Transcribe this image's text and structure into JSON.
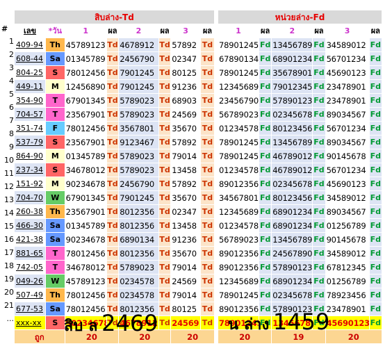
{
  "left_title": "สิบล่าง-Td",
  "right_title": "หน่วยล่าง-Fd",
  "col_hash": "#",
  "col_lek": "เลข",
  "col_day": "*วัน",
  "col_one": "1",
  "col_two": "2",
  "col_three": "3",
  "col_res": "ผล",
  "td_label": "Td",
  "fd_label": "Fd",
  "sum_label": "ถูก",
  "sum_left": [
    "20",
    "20",
    "20"
  ],
  "sum_right": [
    "20",
    "19",
    "20"
  ],
  "bottom_left_text": "สิบ ล",
  "bottom_left_num": "2469",
  "bottom_right_text": "น ล่าง",
  "bottom_right_num": "1459",
  "colors": {
    "T": "#ff66cc",
    "S": "#ff6666",
    "M": "#ffffcc",
    "W": "#66cc66",
    "F": "#66ccff",
    "Th": "#ffb84d",
    "Sa": "#6699ff"
  },
  "rows": [
    {
      "n": "1",
      "lek": "409-94",
      "day": "Th",
      "l": [
        "45789123",
        "4678912",
        "57892"
      ],
      "r": [
        "78901245",
        "13456789",
        "34589012"
      ]
    },
    {
      "n": "2",
      "lek": "608-44",
      "day": "Sa",
      "l": [
        "01345789",
        "2456790",
        "02347"
      ],
      "r": [
        "67890134",
        "68901234",
        "56701234"
      ]
    },
    {
      "n": "3",
      "lek": "804-25",
      "day": "S",
      "l": [
        "78012456",
        "7901245",
        "80125"
      ],
      "r": [
        "78901245",
        "35678901",
        "45690123"
      ]
    },
    {
      "n": "4",
      "lek": "449-11",
      "day": "M",
      "l": [
        "12456890",
        "7901245",
        "91236"
      ],
      "r": [
        "12345689",
        "79012345",
        "23478901"
      ]
    },
    {
      "n": "5",
      "lek": "354-90",
      "day": "T",
      "l": [
        "67901345",
        "5789023",
        "68903"
      ],
      "r": [
        "23456790",
        "57890123",
        "23478901"
      ]
    },
    {
      "n": "6",
      "lek": "704-57",
      "day": "T",
      "l": [
        "23567901",
        "5789023",
        "24569"
      ],
      "r": [
        "56789023",
        "02345678",
        "89034567"
      ]
    },
    {
      "n": "7",
      "lek": "351-74",
      "day": "F",
      "l": [
        "78012456",
        "3567801",
        "35670"
      ],
      "r": [
        "01234578",
        "80123456",
        "56701234"
      ]
    },
    {
      "n": "8",
      "lek": "537-79",
      "day": "S",
      "l": [
        "23567901",
        "9123467",
        "57892"
      ],
      "r": [
        "78901245",
        "13456789",
        "89034567"
      ]
    },
    {
      "n": "9",
      "lek": "864-90",
      "day": "M",
      "l": [
        "01345789",
        "5789023",
        "79014"
      ],
      "r": [
        "78901245",
        "46789012",
        "90145678"
      ]
    },
    {
      "n": "10",
      "lek": "237-34",
      "day": "S",
      "l": [
        "34678012",
        "5789023",
        "13458"
      ],
      "r": [
        "01234578",
        "46789012",
        "56701234"
      ]
    },
    {
      "n": "11",
      "lek": "151-92",
      "day": "M",
      "l": [
        "90234678",
        "2456790",
        "57892"
      ],
      "r": [
        "89012356",
        "02345678",
        "45690123"
      ]
    },
    {
      "n": "12",
      "lek": "704-70",
      "day": "W",
      "l": [
        "67901345",
        "7901245",
        "35670"
      ],
      "r": [
        "34567801",
        "80123456",
        "34589012"
      ]
    },
    {
      "n": "13",
      "lek": "260-38",
      "day": "Th",
      "l": [
        "23567901",
        "8012356",
        "02347"
      ],
      "r": [
        "12345689",
        "68901234",
        "89034567"
      ]
    },
    {
      "n": "14",
      "lek": "466-30",
      "day": "Sa",
      "l": [
        "01345789",
        "8012356",
        "13458"
      ],
      "r": [
        "01234578",
        "68901234",
        "01256789"
      ]
    },
    {
      "n": "15",
      "lek": "421-38",
      "day": "Sa",
      "l": [
        "90234678",
        "6890134",
        "91236"
      ],
      "r": [
        "56789023",
        "13456789",
        "90145678"
      ]
    },
    {
      "n": "16",
      "lek": "881-65",
      "day": "T",
      "l": [
        "78012456",
        "8012356",
        "35670"
      ],
      "r": [
        "89012356",
        "24567890",
        "34589012"
      ]
    },
    {
      "n": "17",
      "lek": "742-05",
      "day": "T",
      "l": [
        "34678012",
        "5789023",
        "79014"
      ],
      "r": [
        "89012356",
        "57890123",
        "67812345"
      ]
    },
    {
      "n": "18",
      "lek": "049-26",
      "day": "W",
      "l": [
        "45789123",
        "0234578",
        "24569"
      ],
      "r": [
        "12345689",
        "68901234",
        "01256789"
      ]
    },
    {
      "n": "19",
      "lek": "507-49",
      "day": "Th",
      "l": [
        "78012456",
        "0234578",
        "79014"
      ],
      "r": [
        "78901245",
        "02345678",
        "78923456"
      ]
    },
    {
      "n": "20",
      "lek": "677-53",
      "day": "Sa",
      "l": [
        "78012456",
        "8012356",
        "80125"
      ],
      "r": [
        "89012356",
        "57890123",
        "23478901"
      ]
    },
    {
      "n": "21",
      "lek": "xxx-xx",
      "day": "S",
      "l": [
        "90234678",
        "4678912",
        "24569"
      ],
      "r": [
        "78901245",
        "13456789",
        "45690123"
      ]
    }
  ],
  "row21_q": "?"
}
